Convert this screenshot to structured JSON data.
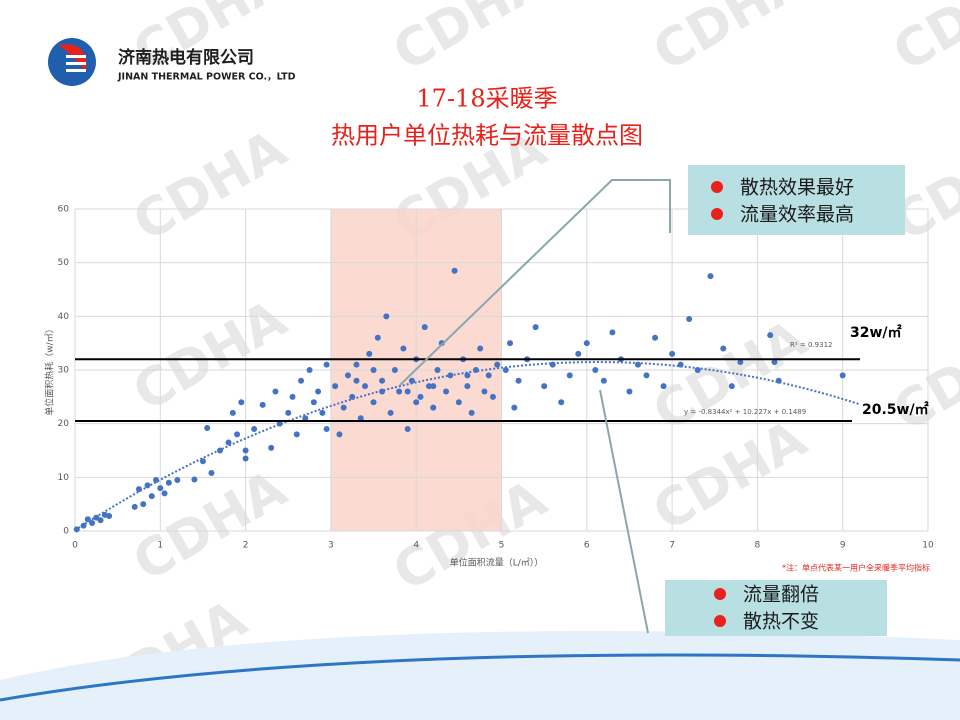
{
  "header": {
    "company_cn": "济南热电有限公司",
    "company_en": "JINAN THERMAL POWER CO.，LTD"
  },
  "watermark": "CDHA",
  "chart_data": {
    "type": "scatter",
    "title": "17-18采暖季",
    "subtitle": "热用户单位热耗与流量散点图",
    "x_label": "单位面积流量（L/㎡））",
    "y_label": "单位面积热耗（w/㎡）",
    "xlim": [
      0,
      10
    ],
    "xticks": [
      0,
      1,
      2,
      3,
      4,
      5,
      6,
      7,
      8,
      9,
      10
    ],
    "ylim": [
      0,
      60
    ],
    "yticks": [
      0,
      10,
      20,
      30,
      40,
      50,
      60
    ],
    "grid": true,
    "highlight_x": [
      3,
      5
    ],
    "reference_lines": [
      {
        "value": 32,
        "label": "32w/㎡"
      },
      {
        "value": 20.5,
        "label": "20.5w/㎡"
      }
    ],
    "trendline": {
      "coefficients": [
        -0.8344,
        10.227,
        0.1489
      ],
      "xlim": [
        0,
        9.2
      ],
      "equation": "y = -0.8344x² + 10.227x + 0.1489",
      "r2": "R² = 0.9312"
    },
    "series": [
      {
        "color": "#4472c4",
        "x": [
          0.02,
          0.1,
          0.15,
          0.2,
          0.25,
          0.3,
          0.35,
          0.4,
          0.7,
          0.75,
          0.8,
          0.85,
          0.9,
          0.95,
          1.0,
          1.05,
          1.1,
          1.2,
          1.4,
          1.5,
          1.6,
          1.55,
          1.7,
          1.8,
          1.85,
          1.9,
          1.95,
          2.0,
          2.0,
          2.1,
          2.2,
          2.3,
          2.35,
          2.4,
          2.5,
          2.55,
          2.6,
          2.65,
          2.7,
          2.75,
          2.8,
          2.85,
          2.9,
          2.95,
          2.95,
          3.05,
          3.1,
          3.15,
          3.2,
          3.25,
          3.3,
          3.35,
          3.4,
          3.45,
          3.5,
          3.55,
          3.6,
          3.65,
          3.7,
          3.75,
          3.8,
          3.85,
          3.9,
          3.95,
          4.0,
          4.05,
          4.1,
          4.15,
          4.2,
          4.25,
          4.3,
          4.35,
          4.4,
          4.45,
          4.5,
          4.55,
          4.6,
          4.65,
          4.7,
          4.75,
          4.8,
          4.85,
          4.9,
          4.95,
          3.6,
          3.3,
          3.9,
          4.2,
          4.6,
          3.5,
          4.0,
          5.05,
          5.1,
          5.15,
          5.2,
          5.3,
          5.4,
          5.5,
          5.6,
          5.7,
          5.8,
          5.9,
          6.0,
          6.1,
          6.2,
          6.3,
          6.4,
          6.5,
          6.6,
          6.7,
          6.8,
          6.9,
          7.0,
          7.1,
          7.2,
          7.3,
          7.45,
          7.6,
          7.7,
          7.8,
          8.15,
          8.2,
          8.25,
          9.0
        ],
        "values": [
          0.3,
          1,
          2.2,
          1.5,
          2.5,
          2,
          3,
          2.8,
          4.5,
          7.8,
          5,
          8.5,
          6.5,
          9.5,
          8,
          7,
          9,
          9.5,
          9.6,
          13,
          10.8,
          19.2,
          15,
          16.5,
          22,
          18,
          24,
          15,
          13.5,
          19,
          23.5,
          15.5,
          26,
          20,
          22,
          25,
          18,
          28,
          21,
          30,
          24,
          26,
          22,
          31,
          19,
          27,
          18,
          23,
          29,
          25,
          31,
          21,
          27,
          33,
          24,
          36,
          28,
          40,
          22,
          30,
          26,
          34,
          19,
          28,
          32,
          25,
          38,
          27,
          23,
          30,
          35,
          26,
          29,
          48.5,
          24,
          32,
          27,
          22,
          30,
          34,
          26,
          29,
          25,
          31,
          26,
          28,
          26,
          27,
          29,
          30,
          24,
          30,
          35,
          23,
          28,
          32,
          38,
          27,
          31,
          24,
          29,
          33,
          35,
          30,
          28,
          37,
          32,
          26,
          31,
          29,
          36,
          27,
          33,
          31,
          39.5,
          30,
          47.5,
          34,
          27,
          31.5,
          36.5,
          31.5,
          28,
          29
        ]
      }
    ]
  },
  "callout_top": [
    "散热效果最好",
    "流量效率最高"
  ],
  "callout_bottom": [
    "流量翻倍",
    "散热不变"
  ],
  "note": "*注：单点代表某一用户全采暖季平均指标"
}
